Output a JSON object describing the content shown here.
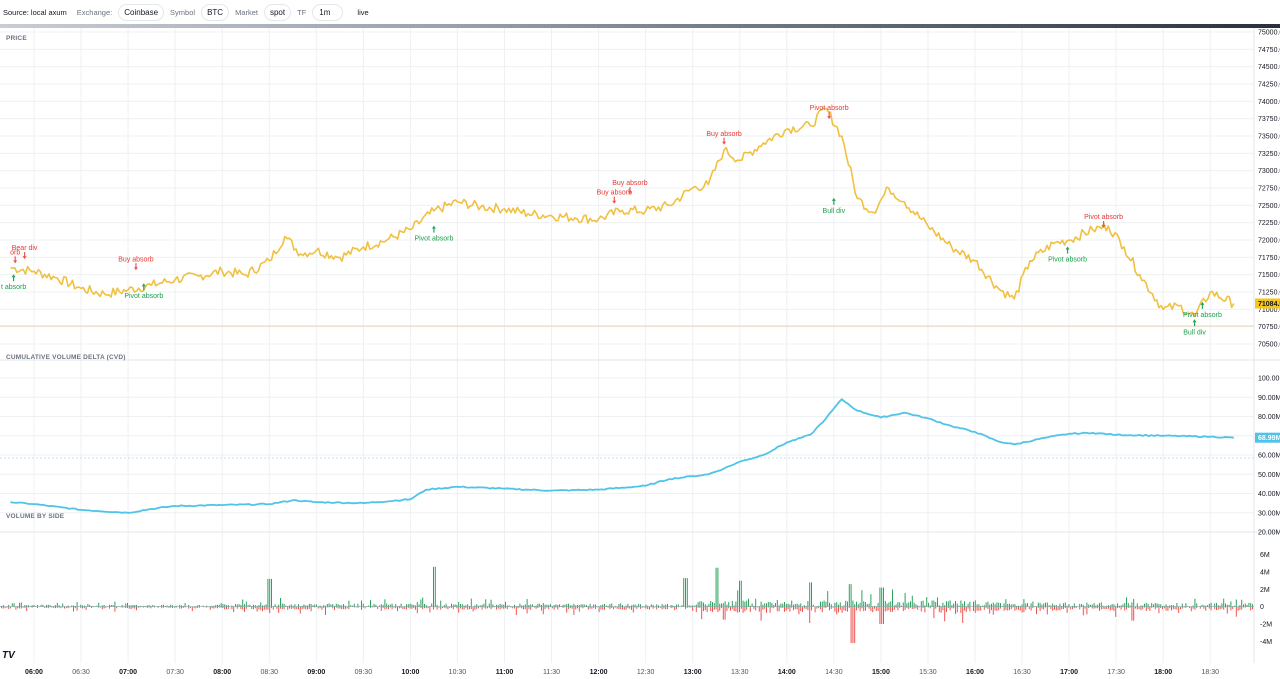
{
  "toolbar": {
    "source": "Source: local axum",
    "exchange_label": "Exchange:",
    "exchange": "Coinbase",
    "symbol_label": "Symbol",
    "symbol": "BTC",
    "market_label": "Market",
    "market": "spot",
    "tf_label": "TF",
    "tf": "1m",
    "live": "live"
  },
  "panes": {
    "price_title": "PRICE",
    "cvd_title": "CUMULATIVE VOLUME DELTA (CVD)",
    "vol_title": "VOLUME BY SIDE"
  },
  "logo": "TV",
  "colors": {
    "price": "#f0c040",
    "cvd": "#4fc3e8",
    "buy": "#26a65b",
    "sell": "#ef5350",
    "grid": "#eef0f3"
  },
  "chart_data": [
    {
      "type": "line",
      "name": "price",
      "ylim": [
        70500,
        75000
      ],
      "yticks": [
        "70500.00",
        "70750.00",
        "71000.00",
        "71250.00",
        "71500.00",
        "71750.00",
        "72000.00",
        "72250.00",
        "72500.00",
        "72750.00",
        "73000.00",
        "73250.00",
        "73500.00",
        "73750.00",
        "74000.00",
        "74250.00",
        "74500.00",
        "74750.00",
        "75000.00"
      ],
      "x": [
        "05:45",
        "06:00",
        "06:15",
        "06:30",
        "06:45",
        "07:00",
        "07:15",
        "07:30",
        "07:45",
        "08:00",
        "08:15",
        "08:30",
        "08:40",
        "08:50",
        "09:00",
        "09:15",
        "09:30",
        "09:45",
        "10:00",
        "10:15",
        "10:30",
        "10:45",
        "11:00",
        "11:15",
        "11:30",
        "11:45",
        "12:00",
        "12:15",
        "12:30",
        "12:45",
        "13:00",
        "13:10",
        "13:20",
        "13:30",
        "13:45",
        "14:00",
        "14:15",
        "14:25",
        "14:35",
        "14:45",
        "14:55",
        "15:05",
        "15:15",
        "15:30",
        "15:45",
        "16:00",
        "16:15",
        "16:25",
        "16:35",
        "16:50",
        "17:00",
        "17:15",
        "17:25",
        "17:35",
        "17:45",
        "18:00",
        "18:10",
        "18:20",
        "18:30",
        "18:45"
      ],
      "y": [
        71600,
        71550,
        71450,
        71300,
        71220,
        71280,
        71350,
        71430,
        71480,
        71550,
        71500,
        71700,
        72050,
        71800,
        71850,
        71750,
        71900,
        72000,
        72150,
        72420,
        72550,
        72480,
        72450,
        72380,
        72350,
        72320,
        72300,
        72430,
        72420,
        72500,
        72750,
        72800,
        73300,
        73150,
        73400,
        73600,
        73650,
        73900,
        73500,
        72600,
        72400,
        72750,
        72550,
        72200,
        71900,
        71700,
        71300,
        71150,
        71700,
        71950,
        72000,
        72150,
        72200,
        71900,
        71500,
        71000,
        71050,
        70900,
        71250,
        71084.5
      ],
      "last_value": "71084.5",
      "annotations": [
        {
          "time": "05:48",
          "price": 71620,
          "label": "orb",
          "dir": "down",
          "color": "red"
        },
        {
          "time": "05:47",
          "price": 71550,
          "label": "t absorb",
          "dir": "up",
          "color": "green"
        },
        {
          "time": "05:54",
          "price": 71680,
          "label": "Bear div",
          "dir": "down",
          "color": "red"
        },
        {
          "time": "07:05",
          "price": 71520,
          "label": "Buy absorb",
          "dir": "down",
          "color": "red"
        },
        {
          "time": "07:10",
          "price": 71420,
          "label": "Pivot absorb",
          "dir": "up",
          "color": "green"
        },
        {
          "time": "10:15",
          "price": 72250,
          "label": "Pivot absorb",
          "dir": "up",
          "color": "green"
        },
        {
          "time": "12:10",
          "price": 72480,
          "label": "Buy absorb",
          "dir": "down",
          "color": "red"
        },
        {
          "time": "12:20",
          "price": 72620,
          "label": "Buy absorb",
          "dir": "down",
          "color": "red"
        },
        {
          "time": "13:20",
          "price": 73330,
          "label": "Buy absorb",
          "dir": "down",
          "color": "red"
        },
        {
          "time": "14:27",
          "price": 73700,
          "label": "Pivot absorb",
          "dir": "down",
          "color": "red"
        },
        {
          "time": "14:30",
          "price": 72650,
          "label": "Bull div",
          "dir": "up",
          "color": "green"
        },
        {
          "time": "16:59",
          "price": 71950,
          "label": "Pivot absorb",
          "dir": "up",
          "color": "green"
        },
        {
          "time": "17:22",
          "price": 72130,
          "label": "Pivot absorb",
          "dir": "down",
          "color": "red"
        },
        {
          "time": "18:20",
          "price": 70900,
          "label": "Bull div",
          "dir": "up",
          "color": "green"
        },
        {
          "time": "18:25",
          "price": 71150,
          "label": "Pivot absorb",
          "dir": "up",
          "color": "green"
        }
      ]
    },
    {
      "type": "line",
      "name": "cvd",
      "ylim": [
        20,
        100
      ],
      "yticks": [
        "20.00M",
        "30.00M",
        "40.00M",
        "50.00M",
        "60.00M",
        "70.00M",
        "80.00M",
        "90.00M",
        "100.00M"
      ],
      "x": [
        "05:45",
        "06:00",
        "06:30",
        "07:00",
        "07:15",
        "07:30",
        "08:00",
        "08:30",
        "08:45",
        "09:00",
        "09:30",
        "10:00",
        "10:10",
        "10:30",
        "11:00",
        "11:30",
        "12:00",
        "12:30",
        "12:45",
        "13:00",
        "13:10",
        "13:20",
        "13:30",
        "13:45",
        "14:00",
        "14:15",
        "14:25",
        "14:35",
        "14:45",
        "15:00",
        "15:15",
        "15:30",
        "15:45",
        "16:00",
        "16:15",
        "16:25",
        "16:45",
        "17:00",
        "17:15",
        "17:30",
        "18:00",
        "18:30",
        "18:45"
      ],
      "y": [
        35.5,
        34.5,
        31.5,
        30.0,
        32.0,
        33.5,
        34.0,
        34.5,
        36.5,
        35.5,
        35.0,
        37.0,
        42.0,
        43.5,
        42.5,
        41.5,
        42.0,
        44.0,
        47.5,
        49.0,
        50.0,
        53.0,
        56.5,
        60.0,
        66.5,
        70.5,
        79.0,
        89.0,
        83.0,
        79.5,
        82.0,
        79.0,
        75.0,
        72.0,
        67.0,
        65.5,
        69.0,
        71.0,
        71.5,
        70.5,
        70.0,
        69.5,
        68.99
      ],
      "last_value": "68.99M"
    },
    {
      "type": "bar",
      "name": "volume by side",
      "ylim": [
        -5,
        7
      ],
      "yticks": [
        "-4M",
        "-2M",
        "0",
        "2M",
        "4M",
        "6M"
      ],
      "series": [
        {
          "name": "buy",
          "color": "#26a65b"
        },
        {
          "name": "sell",
          "color": "#ef5350"
        }
      ],
      "x_range": [
        "05:45",
        "18:45"
      ],
      "peaks_buy": [
        {
          "time": "08:30",
          "value": 3.2
        },
        {
          "time": "10:15",
          "value": 4.6
        },
        {
          "time": "12:55",
          "value": 3.3
        },
        {
          "time": "13:15",
          "value": 4.5
        },
        {
          "time": "13:30",
          "value": 3.0
        },
        {
          "time": "14:15",
          "value": 2.8
        },
        {
          "time": "14:40",
          "value": 2.6
        },
        {
          "time": "15:00",
          "value": 2.2
        }
      ],
      "peaks_sell": [
        {
          "time": "13:20",
          "value": -1.5
        },
        {
          "time": "14:42",
          "value": -4.2
        },
        {
          "time": "15:00",
          "value": -2.0
        },
        {
          "time": "17:40",
          "value": -1.6
        }
      ]
    }
  ],
  "xaxis": {
    "ticks": [
      {
        "t": "06:00",
        "label": "06:00",
        "bold": true
      },
      {
        "t": "06:30",
        "label": "06:30",
        "bold": false
      },
      {
        "t": "07:00",
        "label": "07:00",
        "bold": true
      },
      {
        "t": "07:30",
        "label": "07:30",
        "bold": false
      },
      {
        "t": "08:00",
        "label": "08:00",
        "bold": true
      },
      {
        "t": "08:30",
        "label": "08:30",
        "bold": false
      },
      {
        "t": "09:00",
        "label": "09:00",
        "bold": true
      },
      {
        "t": "09:30",
        "label": "09:30",
        "bold": false
      },
      {
        "t": "10:00",
        "label": "10:00",
        "bold": true
      },
      {
        "t": "10:30",
        "label": "10:30",
        "bold": false
      },
      {
        "t": "11:00",
        "label": "11:00",
        "bold": true
      },
      {
        "t": "11:30",
        "label": "11:30",
        "bold": false
      },
      {
        "t": "12:00",
        "label": "12:00",
        "bold": true
      },
      {
        "t": "12:30",
        "label": "12:30",
        "bold": false
      },
      {
        "t": "13:00",
        "label": "13:00",
        "bold": true
      },
      {
        "t": "13:30",
        "label": "13:30",
        "bold": false
      },
      {
        "t": "14:00",
        "label": "14:00",
        "bold": true
      },
      {
        "t": "14:30",
        "label": "14:30",
        "bold": false
      },
      {
        "t": "15:00",
        "label": "15:00",
        "bold": true
      },
      {
        "t": "15:30",
        "label": "15:30",
        "bold": false
      },
      {
        "t": "16:00",
        "label": "16:00",
        "bold": true
      },
      {
        "t": "16:30",
        "label": "16:30",
        "bold": false
      },
      {
        "t": "17:00",
        "label": "17:00",
        "bold": true
      },
      {
        "t": "17:30",
        "label": "17:30",
        "bold": false
      },
      {
        "t": "18:00",
        "label": "18:00",
        "bold": true
      },
      {
        "t": "18:30",
        "label": "18:30",
        "bold": false
      }
    ]
  }
}
